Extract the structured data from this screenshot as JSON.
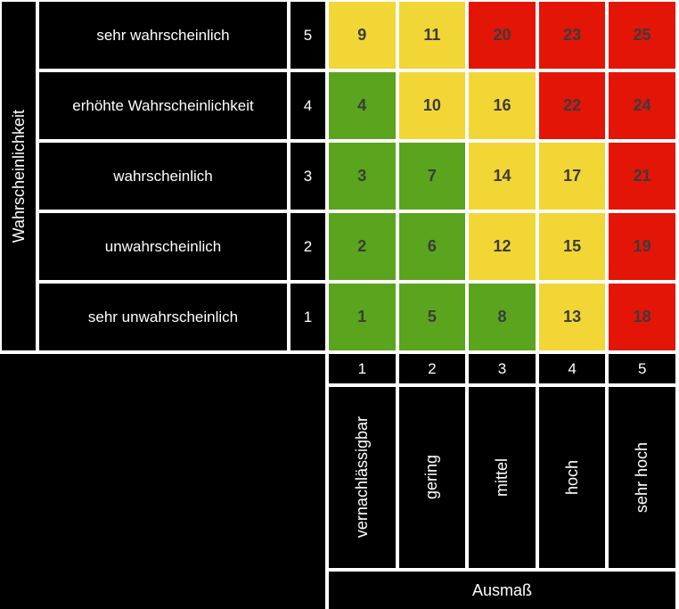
{
  "colors": {
    "green": "#5aa41e",
    "yellow": "#f1d635",
    "red": "#e21507",
    "cell_text": "#3b3b3b",
    "grid_line": "#ffffff",
    "cell_bg": "#000000"
  },
  "matrix": {
    "y_axis_title": "Wahrscheinlichkeit",
    "x_axis_title": "Ausmaß",
    "rows": [
      {
        "label": "sehr wahrscheinlich",
        "level": "5",
        "cells": [
          {
            "value": "9",
            "color": "yellow"
          },
          {
            "value": "11",
            "color": "yellow"
          },
          {
            "value": "20",
            "color": "red"
          },
          {
            "value": "23",
            "color": "red"
          },
          {
            "value": "25",
            "color": "red"
          }
        ]
      },
      {
        "label": "erhöhte Wahrscheinlichkeit",
        "level": "4",
        "cells": [
          {
            "value": "4",
            "color": "green"
          },
          {
            "value": "10",
            "color": "yellow"
          },
          {
            "value": "16",
            "color": "yellow"
          },
          {
            "value": "22",
            "color": "red"
          },
          {
            "value": "24",
            "color": "red"
          }
        ]
      },
      {
        "label": "wahrscheinlich",
        "level": "3",
        "cells": [
          {
            "value": "3",
            "color": "green"
          },
          {
            "value": "7",
            "color": "green"
          },
          {
            "value": "14",
            "color": "yellow"
          },
          {
            "value": "17",
            "color": "yellow"
          },
          {
            "value": "21",
            "color": "red"
          }
        ]
      },
      {
        "label": "unwahrscheinlich",
        "level": "2",
        "cells": [
          {
            "value": "2",
            "color": "green"
          },
          {
            "value": "6",
            "color": "green"
          },
          {
            "value": "12",
            "color": "yellow"
          },
          {
            "value": "15",
            "color": "yellow"
          },
          {
            "value": "19",
            "color": "red"
          }
        ]
      },
      {
        "label": "sehr unwahrscheinlich",
        "level": "1",
        "cells": [
          {
            "value": "1",
            "color": "green"
          },
          {
            "value": "5",
            "color": "green"
          },
          {
            "value": "8",
            "color": "green"
          },
          {
            "value": "13",
            "color": "yellow"
          },
          {
            "value": "18",
            "color": "red"
          }
        ]
      }
    ],
    "x_levels": [
      "1",
      "2",
      "3",
      "4",
      "5"
    ],
    "x_labels": [
      "vernachlässigbar",
      "gering",
      "mittel",
      "hoch",
      "sehr hoch"
    ]
  },
  "chart_data": {
    "type": "heatmap",
    "title": "",
    "xlabel": "Ausmaß",
    "ylabel": "Wahrscheinlichkeit",
    "x_ticks": [
      "1",
      "2",
      "3",
      "4",
      "5"
    ],
    "x_tick_labels": [
      "vernachlässigbar",
      "gering",
      "mittel",
      "hoch",
      "sehr hoch"
    ],
    "y_ticks": [
      "5",
      "4",
      "3",
      "2",
      "1"
    ],
    "y_tick_labels": [
      "sehr wahrscheinlich",
      "erhöhte Wahrscheinlichkeit",
      "wahrscheinlich",
      "unwahrscheinlich",
      "sehr unwahrscheinlich"
    ],
    "values_by_row": [
      [
        9,
        11,
        20,
        23,
        25
      ],
      [
        4,
        10,
        16,
        22,
        24
      ],
      [
        3,
        7,
        14,
        17,
        21
      ],
      [
        2,
        6,
        12,
        15,
        19
      ],
      [
        1,
        5,
        8,
        13,
        18
      ]
    ],
    "cell_colors_by_row": [
      [
        "yellow",
        "yellow",
        "red",
        "red",
        "red"
      ],
      [
        "green",
        "yellow",
        "yellow",
        "red",
        "red"
      ],
      [
        "green",
        "green",
        "yellow",
        "yellow",
        "red"
      ],
      [
        "green",
        "green",
        "yellow",
        "yellow",
        "red"
      ],
      [
        "green",
        "green",
        "green",
        "yellow",
        "red"
      ]
    ],
    "grid": "white gridlines on black background",
    "legend_position": "none"
  }
}
